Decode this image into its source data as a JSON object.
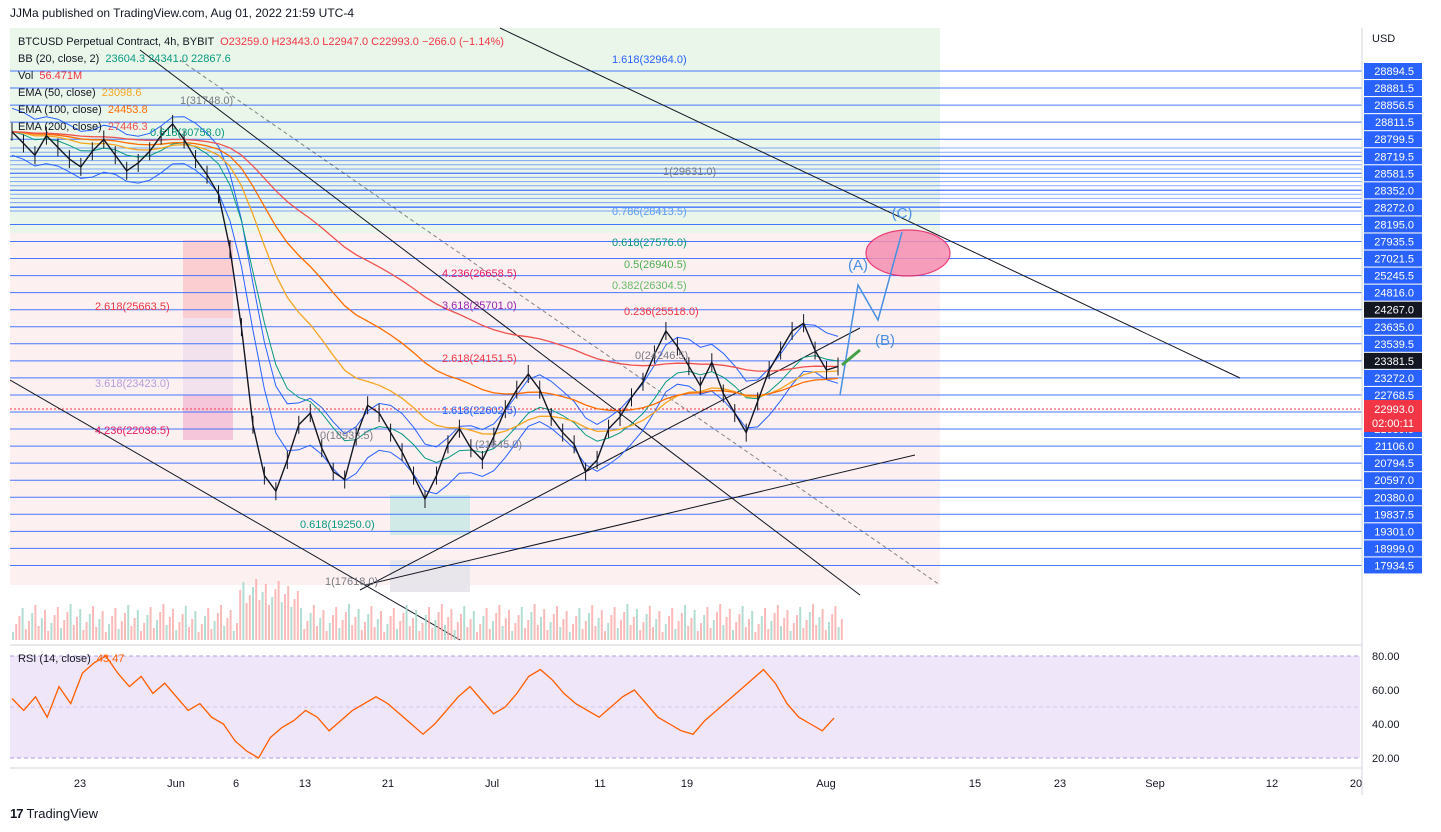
{
  "header": {
    "published": "JJMa published on TradingView.com, Aug 01, 2022 21:59 UTC-4"
  },
  "legend": {
    "title": "BTCUSD Perpetual Contract, 4h, BYBIT",
    "ohlc": "O23259.0  H23443.0  L22947.0  C22993.0  −266.0 (−1.14%)",
    "bb": "BB (20, close, 2)",
    "bb_vals": "23604.3  24341.0  22867.6",
    "vol": "Vol",
    "vol_val": "56.471M",
    "ema50": "EMA (50, close)",
    "ema50_val": "23098.6",
    "ema100": "EMA (100, close)",
    "ema100_val": "24453.8",
    "ema200": "EMA (200, close)",
    "ema200_val": "27446.3"
  },
  "rsi": {
    "label": "RSI (14, close)",
    "value": "43.47"
  },
  "brand": {
    "name": "TradingView",
    "logo": "17"
  },
  "colors": {
    "candle": "#131722",
    "bb": "#2962ff",
    "ema50": "#f5a623",
    "ema100": "#ff6d00",
    "ema200": "#ef5350",
    "rsi": "#ff5d00",
    "hline": "#2962ff",
    "price_tag": "#f23645",
    "green_zone": "#e6f4e6",
    "red_zone": "#fdeeee",
    "rsi_band": "#f0e6fa"
  },
  "chart_data": {
    "type": "candlestick",
    "symbol": "BTCUSD",
    "timeframe": "4h",
    "axis_currency": "USD",
    "ylim": [
      17400,
      29300
    ],
    "x_ticks": [
      "23",
      "Jun",
      "6",
      "13",
      "21",
      "Jul",
      "11",
      "19",
      "Aug",
      "15",
      "23",
      "Sep",
      "12",
      "20"
    ],
    "price_ticks": [
      "28894.5",
      "28881.5",
      "28856.5",
      "28811.5",
      "28799.5",
      "28719.5",
      "28581.5",
      "28352.0",
      "28272.0",
      "28195.0",
      "27935.5",
      "27021.5",
      "25245.5",
      "24816.0",
      "24267.0",
      "23635.0",
      "23539.5",
      "23381.5",
      "23272.0",
      "22768.5",
      "22102.5",
      "21689.5",
      "21106.0",
      "20794.5",
      "20597.0",
      "20380.0",
      "19837.5",
      "19301.0",
      "18999.0",
      "17934.5"
    ],
    "highlighted_ticks": [
      "24267.0",
      "23381.5"
    ],
    "last_price": {
      "price": "22993.0",
      "countdown": "02:00:11"
    },
    "price_path": [
      29000,
      28700,
      28400,
      28900,
      28600,
      28300,
      28100,
      28500,
      28800,
      28400,
      28000,
      28200,
      28500,
      28900,
      29200,
      28800,
      28300,
      27900,
      27400,
      26000,
      24000,
      21500,
      20200,
      19800,
      20600,
      21500,
      21800,
      20900,
      20300,
      20100,
      21200,
      22000,
      21800,
      21300,
      20800,
      20200,
      19600,
      20200,
      21000,
      21400,
      20900,
      20600,
      21200,
      21900,
      22400,
      22800,
      22400,
      21700,
      21300,
      21000,
      20300,
      20600,
      21400,
      21700,
      22200,
      22600,
      23300,
      23900,
      23500,
      23000,
      22500,
      23100,
      22300,
      21800,
      21300,
      22100,
      22900,
      23400,
      23900,
      24100,
      23400,
      22900,
      22993
    ],
    "fib_labels": [
      {
        "text": "1.618(32964.0)",
        "color": "#2962ff"
      },
      {
        "text": "1(29631.0)",
        "color": "#787b86"
      },
      {
        "text": "0.786(28413.5)",
        "color": "#5b9cf6"
      },
      {
        "text": "0.618(27576.0)",
        "color": "#089981"
      },
      {
        "text": "0.5(26940.5)",
        "color": "#4caf50"
      },
      {
        "text": "0.382(26304.5)",
        "color": "#66bb6a"
      },
      {
        "text": "0.236(25518.0)",
        "color": "#f23645"
      },
      {
        "text": "4.236(26658.5)",
        "color": "#e91e63"
      },
      {
        "text": "3.618(25701.0)",
        "color": "#9c27b0"
      },
      {
        "text": "2.618(24151.5)",
        "color": "#f23645"
      },
      {
        "text": "2.618(25663.5)",
        "color": "#f23645"
      },
      {
        "text": "3.618(23423.0)",
        "color": "#b39ddb"
      },
      {
        "text": "4.236(22038.5)",
        "color": "#e91e63"
      },
      {
        "text": "0(24246.5)",
        "color": "#787b86"
      },
      {
        "text": "1.618(22602.5)",
        "color": "#2962ff"
      },
      {
        "text": "0.618(19250.0)",
        "color": "#089981"
      },
      {
        "text": "1(17618.0)",
        "color": "#787b86"
      },
      {
        "text": "1(31748.0)",
        "color": "#787b86"
      },
      {
        "text": "0(18933.5)",
        "color": "#787b86"
      },
      {
        "text": "0.618(30758.0)",
        "color": "#089981"
      },
      {
        "text": "(21645.0)",
        "color": "#787b86"
      }
    ],
    "wave_labels": [
      "(A)",
      "(B)",
      "(C)"
    ],
    "rsi_ticks": [
      "80.00",
      "60.00",
      "40.00",
      "20.00"
    ],
    "rsi_path": [
      55,
      48,
      56,
      44,
      62,
      52,
      70,
      76,
      80,
      70,
      62,
      68,
      58,
      64,
      56,
      48,
      52,
      44,
      40,
      30,
      24,
      20,
      32,
      38,
      42,
      48,
      44,
      36,
      42,
      48,
      52,
      56,
      52,
      46,
      40,
      34,
      40,
      48,
      56,
      62,
      54,
      46,
      50,
      58,
      68,
      72,
      66,
      58,
      52,
      48,
      44,
      50,
      56,
      60,
      52,
      44,
      40,
      36,
      34,
      42,
      48,
      54,
      60,
      66,
      72,
      64,
      52,
      44,
      40,
      36,
      43.47
    ]
  }
}
